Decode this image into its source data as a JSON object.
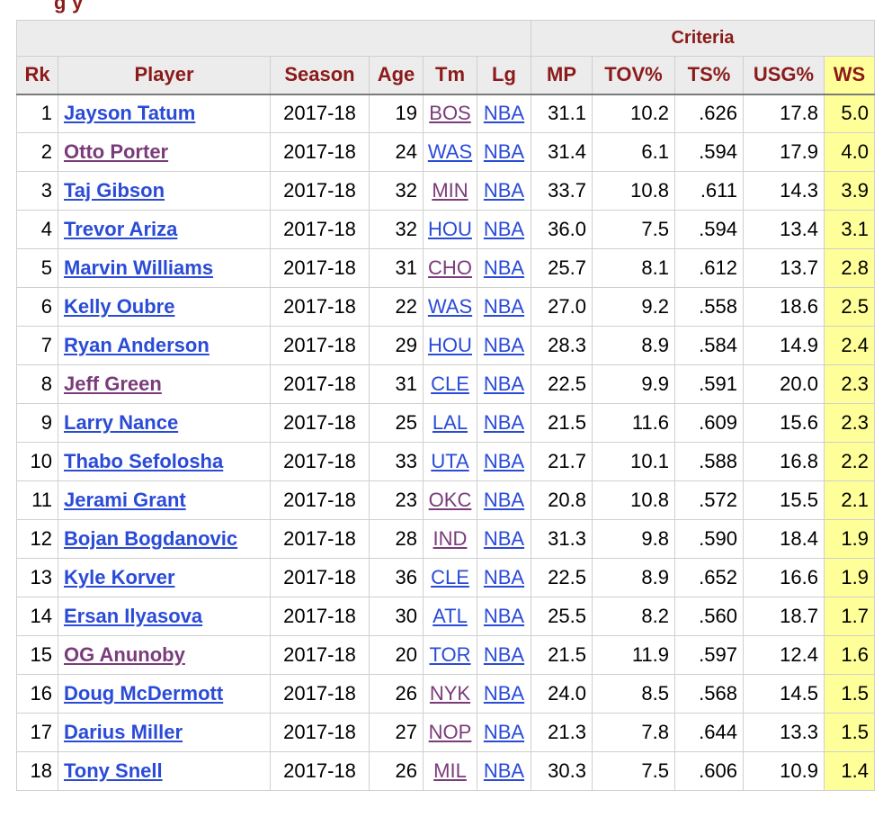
{
  "page": {
    "title_partial": "g                                                          y"
  },
  "table": {
    "overheader": {
      "left": "",
      "criteria": "Criteria"
    },
    "columns": [
      "Rk",
      "Player",
      "Season",
      "Age",
      "Tm",
      "Lg",
      "MP",
      "TOV%",
      "TS%",
      "USG%",
      "WS"
    ],
    "rows": [
      {
        "rk": "1",
        "player": "Jayson Tatum",
        "player_visited": false,
        "season": "2017-18",
        "age": "19",
        "tm": "BOS",
        "tm_visited": true,
        "lg": "NBA",
        "mp": "31.1",
        "tov": "10.2",
        "ts": ".626",
        "usg": "17.8",
        "ws": "5.0"
      },
      {
        "rk": "2",
        "player": "Otto Porter",
        "player_visited": true,
        "season": "2017-18",
        "age": "24",
        "tm": "WAS",
        "tm_visited": false,
        "lg": "NBA",
        "mp": "31.4",
        "tov": "6.1",
        "ts": ".594",
        "usg": "17.9",
        "ws": "4.0"
      },
      {
        "rk": "3",
        "player": "Taj Gibson",
        "player_visited": false,
        "season": "2017-18",
        "age": "32",
        "tm": "MIN",
        "tm_visited": true,
        "lg": "NBA",
        "mp": "33.7",
        "tov": "10.8",
        "ts": ".611",
        "usg": "14.3",
        "ws": "3.9"
      },
      {
        "rk": "4",
        "player": "Trevor Ariza",
        "player_visited": false,
        "season": "2017-18",
        "age": "32",
        "tm": "HOU",
        "tm_visited": false,
        "lg": "NBA",
        "mp": "36.0",
        "tov": "7.5",
        "ts": ".594",
        "usg": "13.4",
        "ws": "3.1"
      },
      {
        "rk": "5",
        "player": "Marvin Williams",
        "player_visited": false,
        "season": "2017-18",
        "age": "31",
        "tm": "CHO",
        "tm_visited": true,
        "lg": "NBA",
        "mp": "25.7",
        "tov": "8.1",
        "ts": ".612",
        "usg": "13.7",
        "ws": "2.8"
      },
      {
        "rk": "6",
        "player": "Kelly Oubre",
        "player_visited": false,
        "season": "2017-18",
        "age": "22",
        "tm": "WAS",
        "tm_visited": false,
        "lg": "NBA",
        "mp": "27.0",
        "tov": "9.2",
        "ts": ".558",
        "usg": "18.6",
        "ws": "2.5"
      },
      {
        "rk": "7",
        "player": "Ryan Anderson",
        "player_visited": false,
        "season": "2017-18",
        "age": "29",
        "tm": "HOU",
        "tm_visited": false,
        "lg": "NBA",
        "mp": "28.3",
        "tov": "8.9",
        "ts": ".584",
        "usg": "14.9",
        "ws": "2.4"
      },
      {
        "rk": "8",
        "player": "Jeff Green",
        "player_visited": true,
        "season": "2017-18",
        "age": "31",
        "tm": "CLE",
        "tm_visited": false,
        "lg": "NBA",
        "mp": "22.5",
        "tov": "9.9",
        "ts": ".591",
        "usg": "20.0",
        "ws": "2.3"
      },
      {
        "rk": "9",
        "player": "Larry Nance",
        "player_visited": false,
        "season": "2017-18",
        "age": "25",
        "tm": "LAL",
        "tm_visited": false,
        "lg": "NBA",
        "mp": "21.5",
        "tov": "11.6",
        "ts": ".609",
        "usg": "15.6",
        "ws": "2.3"
      },
      {
        "rk": "10",
        "player": "Thabo Sefolosha",
        "player_visited": false,
        "season": "2017-18",
        "age": "33",
        "tm": "UTA",
        "tm_visited": false,
        "lg": "NBA",
        "mp": "21.7",
        "tov": "10.1",
        "ts": ".588",
        "usg": "16.8",
        "ws": "2.2"
      },
      {
        "rk": "11",
        "player": "Jerami Grant",
        "player_visited": false,
        "season": "2017-18",
        "age": "23",
        "tm": "OKC",
        "tm_visited": true,
        "lg": "NBA",
        "mp": "20.8",
        "tov": "10.8",
        "ts": ".572",
        "usg": "15.5",
        "ws": "2.1"
      },
      {
        "rk": "12",
        "player": "Bojan Bogdanovic",
        "player_visited": false,
        "season": "2017-18",
        "age": "28",
        "tm": "IND",
        "tm_visited": true,
        "lg": "NBA",
        "mp": "31.3",
        "tov": "9.8",
        "ts": ".590",
        "usg": "18.4",
        "ws": "1.9"
      },
      {
        "rk": "13",
        "player": "Kyle Korver",
        "player_visited": false,
        "season": "2017-18",
        "age": "36",
        "tm": "CLE",
        "tm_visited": false,
        "lg": "NBA",
        "mp": "22.5",
        "tov": "8.9",
        "ts": ".652",
        "usg": "16.6",
        "ws": "1.9"
      },
      {
        "rk": "14",
        "player": "Ersan Ilyasova",
        "player_visited": false,
        "season": "2017-18",
        "age": "30",
        "tm": "ATL",
        "tm_visited": false,
        "lg": "NBA",
        "mp": "25.5",
        "tov": "8.2",
        "ts": ".560",
        "usg": "18.7",
        "ws": "1.7"
      },
      {
        "rk": "15",
        "player": "OG Anunoby",
        "player_visited": true,
        "season": "2017-18",
        "age": "20",
        "tm": "TOR",
        "tm_visited": false,
        "lg": "NBA",
        "mp": "21.5",
        "tov": "11.9",
        "ts": ".597",
        "usg": "12.4",
        "ws": "1.6"
      },
      {
        "rk": "16",
        "player": "Doug McDermott",
        "player_visited": false,
        "season": "2017-18",
        "age": "26",
        "tm": "NYK",
        "tm_visited": true,
        "lg": "NBA",
        "mp": "24.0",
        "tov": "8.5",
        "ts": ".568",
        "usg": "14.5",
        "ws": "1.5"
      },
      {
        "rk": "17",
        "player": "Darius Miller",
        "player_visited": false,
        "season": "2017-18",
        "age": "27",
        "tm": "NOP",
        "tm_visited": true,
        "lg": "NBA",
        "mp": "21.3",
        "tov": "7.8",
        "ts": ".644",
        "usg": "13.3",
        "ws": "1.5"
      },
      {
        "rk": "18",
        "player": "Tony Snell",
        "player_visited": false,
        "season": "2017-18",
        "age": "26",
        "tm": "MIL",
        "tm_visited": true,
        "lg": "NBA",
        "mp": "30.3",
        "tov": "7.5",
        "ts": ".606",
        "usg": "10.9",
        "ws": "1.4"
      }
    ]
  },
  "colors": {
    "header_text": "#8b1a1a",
    "header_bg": "#ececec",
    "ws_highlight": "#ffff99",
    "link_unvisited": "#2a4bd7",
    "link_visited": "#7a3b7a"
  }
}
